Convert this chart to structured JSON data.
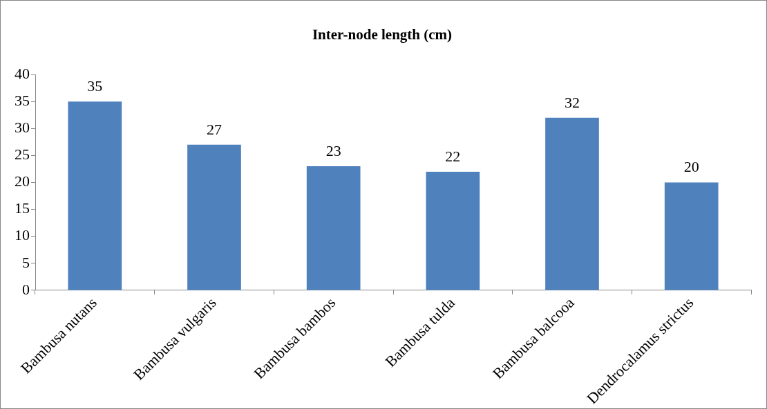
{
  "chart_data": {
    "type": "bar",
    "title": "Inter-node length (cm)",
    "categories": [
      "Bambusa nutans",
      "Bambusa vulgaris",
      "Bambusa bambos",
      "Bambusa tulda",
      "Bambusa balcooa",
      "Dendrocalamus strictus"
    ],
    "values": [
      35,
      27,
      23,
      22,
      32,
      20
    ],
    "color": "#4f81bd",
    "ylim": [
      0,
      40
    ],
    "yticks": [
      0,
      5,
      10,
      15,
      20,
      25,
      30,
      35,
      40
    ],
    "grid": false,
    "legend": false,
    "data_labels": true
  }
}
